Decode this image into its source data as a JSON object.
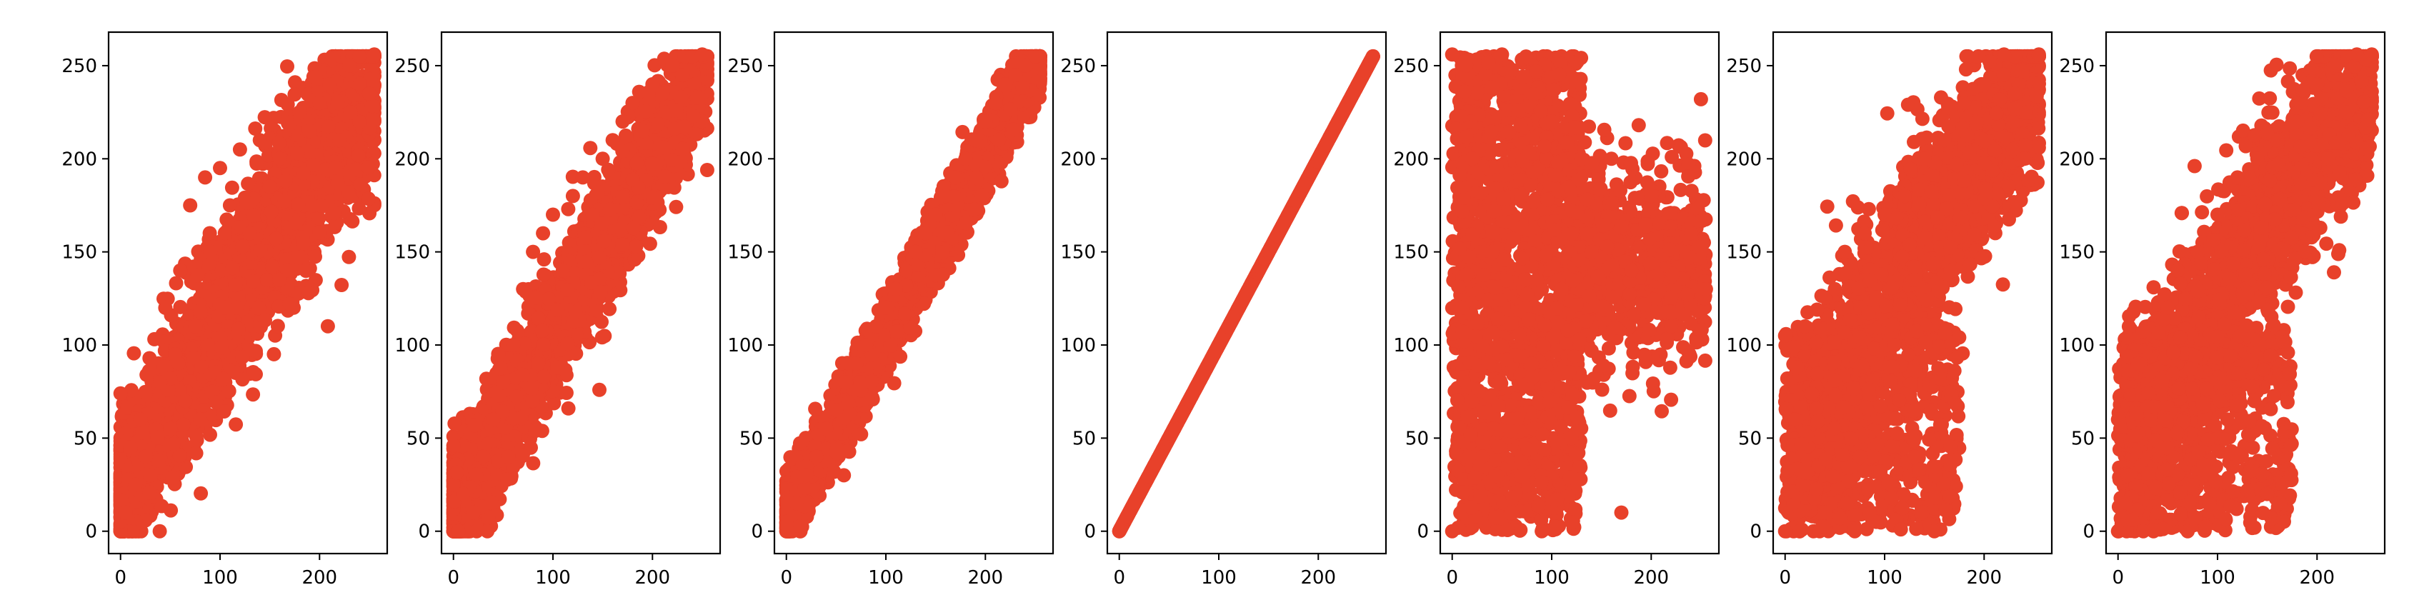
{
  "chart_data": [
    {
      "type": "scatter",
      "xlim": [
        -12,
        268
      ],
      "ylim": [
        -12,
        268
      ],
      "xticks": [
        0,
        100,
        200
      ],
      "yticks": [
        0,
        50,
        100,
        150,
        200,
        250
      ],
      "xtick_labels": [
        "0",
        "100",
        "200"
      ],
      "ytick_labels": [
        "0",
        "50",
        "100",
        "150",
        "200",
        "250"
      ],
      "pattern": "broad-positive-correlation",
      "series": [
        {
          "color": "#e8412a",
          "points": [
            [
              0,
              74
            ],
            [
              5,
              10
            ],
            [
              10,
              45
            ],
            [
              15,
              25
            ],
            [
              20,
              60
            ],
            [
              25,
              40
            ],
            [
              30,
              30
            ],
            [
              40,
              80
            ],
            [
              45,
              120
            ],
            [
              50,
              55
            ],
            [
              55,
              95
            ],
            [
              60,
              140
            ],
            [
              65,
              70
            ],
            [
              70,
              175
            ],
            [
              75,
              110
            ],
            [
              80,
              60
            ],
            [
              85,
              190
            ],
            [
              90,
              150
            ],
            [
              100,
              195
            ],
            [
              105,
              120
            ],
            [
              110,
              175
            ],
            [
              120,
              205
            ],
            [
              130,
              160
            ],
            [
              140,
              210
            ],
            [
              150,
              185
            ],
            [
              160,
              200
            ],
            [
              170,
              122
            ],
            [
              180,
              225
            ],
            [
              190,
              215
            ],
            [
              200,
              230
            ],
            [
              210,
              240
            ],
            [
              220,
              210
            ],
            [
              230,
              250
            ],
            [
              240,
              255
            ],
            [
              250,
              235
            ],
            [
              255,
              256
            ]
          ]
        }
      ]
    },
    {
      "type": "scatter",
      "xlim": [
        -12,
        268
      ],
      "ylim": [
        -12,
        268
      ],
      "xticks": [
        0,
        100,
        200
      ],
      "yticks": [
        0,
        50,
        100,
        150,
        200,
        250
      ],
      "xtick_labels": [
        "0",
        "100",
        "200"
      ],
      "ytick_labels": [
        "0",
        "50",
        "100",
        "150",
        "200",
        "250"
      ],
      "pattern": "moderate-positive-correlation",
      "series": [
        {
          "color": "#e8412a",
          "points": [
            [
              0,
              46
            ],
            [
              5,
              0
            ],
            [
              10,
              20
            ],
            [
              20,
              10
            ],
            [
              30,
              40
            ],
            [
              40,
              60
            ],
            [
              50,
              80
            ],
            [
              55,
              40
            ],
            [
              60,
              100
            ],
            [
              70,
              130
            ],
            [
              80,
              150
            ],
            [
              85,
              90
            ],
            [
              90,
              160
            ],
            [
              100,
              170
            ],
            [
              110,
              140
            ],
            [
              120,
              180
            ],
            [
              130,
              190
            ],
            [
              140,
              170
            ],
            [
              150,
              200
            ],
            [
              160,
              210
            ],
            [
              170,
              220
            ],
            [
              180,
              230
            ],
            [
              190,
              215
            ],
            [
              200,
              240
            ],
            [
              210,
              235
            ],
            [
              220,
              250
            ],
            [
              230,
              245
            ],
            [
              240,
              255
            ],
            [
              250,
              256
            ]
          ]
        }
      ]
    },
    {
      "type": "scatter",
      "xlim": [
        -12,
        268
      ],
      "ylim": [
        -12,
        268
      ],
      "xticks": [
        0,
        100,
        200
      ],
      "yticks": [
        0,
        50,
        100,
        150,
        200,
        250
      ],
      "xtick_labels": [
        "0",
        "100",
        "200"
      ],
      "ytick_labels": [
        "0",
        "50",
        "100",
        "150",
        "200",
        "250"
      ],
      "pattern": "strong-positive-correlation",
      "series": [
        {
          "color": "#e8412a",
          "points": [
            [
              0,
              5
            ],
            [
              10,
              15
            ],
            [
              20,
              30
            ],
            [
              30,
              40
            ],
            [
              40,
              55
            ],
            [
              50,
              65
            ],
            [
              60,
              80
            ],
            [
              70,
              90
            ],
            [
              80,
              100
            ],
            [
              90,
              110
            ],
            [
              100,
              120
            ],
            [
              110,
              130
            ],
            [
              120,
              140
            ],
            [
              130,
              150
            ],
            [
              140,
              160
            ],
            [
              150,
              170
            ],
            [
              160,
              180
            ],
            [
              170,
              190
            ],
            [
              180,
              200
            ],
            [
              190,
              210
            ],
            [
              200,
              220
            ],
            [
              210,
              230
            ],
            [
              220,
              240
            ],
            [
              230,
              245
            ],
            [
              240,
              250
            ],
            [
              250,
              255
            ]
          ]
        }
      ]
    },
    {
      "type": "scatter",
      "xlim": [
        -12,
        268
      ],
      "ylim": [
        -12,
        268
      ],
      "xticks": [
        0,
        100,
        200
      ],
      "yticks": [
        0,
        50,
        100,
        150,
        200,
        250
      ],
      "xtick_labels": [
        "0",
        "100",
        "200"
      ],
      "ytick_labels": [
        "0",
        "50",
        "100",
        "150",
        "200",
        "250"
      ],
      "pattern": "identity-line",
      "series": [
        {
          "color": "#e8412a",
          "points": [
            [
              0,
              0
            ],
            [
              255,
              255
            ]
          ]
        }
      ]
    },
    {
      "type": "scatter",
      "xlim": [
        -12,
        268
      ],
      "ylim": [
        -12,
        268
      ],
      "xticks": [
        0,
        100,
        200
      ],
      "yticks": [
        0,
        50,
        100,
        150,
        200,
        250
      ],
      "xtick_labels": [
        "0",
        "100",
        "200"
      ],
      "ytick_labels": [
        "0",
        "50",
        "100",
        "150",
        "200",
        "250"
      ],
      "pattern": "weak-correlation",
      "series": [
        {
          "color": "#e8412a",
          "points": [
            [
              0,
              0
            ],
            [
              0,
              256
            ],
            [
              10,
              120
            ],
            [
              20,
              200
            ],
            [
              30,
              40
            ],
            [
              40,
              150
            ],
            [
              50,
              256
            ],
            [
              60,
              10
            ],
            [
              70,
              180
            ],
            [
              80,
              90
            ],
            [
              90,
              0
            ],
            [
              100,
              220
            ],
            [
              110,
              130
            ],
            [
              120,
              50
            ],
            [
              130,
              200
            ],
            [
              140,
              150
            ],
            [
              160,
              200
            ],
            [
              170,
              10
            ],
            [
              180,
              140
            ],
            [
              200,
              180
            ],
            [
              220,
              110
            ],
            [
              240,
              160
            ],
            [
              250,
              232
            ],
            [
              255,
              130
            ]
          ]
        }
      ]
    },
    {
      "type": "scatter",
      "xlim": [
        -12,
        268
      ],
      "ylim": [
        -12,
        268
      ],
      "xticks": [
        0,
        100,
        200
      ],
      "yticks": [
        0,
        50,
        100,
        150,
        200,
        250
      ],
      "xtick_labels": [
        "0",
        "100",
        "200"
      ],
      "ytick_labels": [
        "0",
        "50",
        "100",
        "150",
        "200",
        "250"
      ],
      "pattern": "positive-correlation-with-low-outliers",
      "series": [
        {
          "color": "#e8412a",
          "points": [
            [
              0,
              0
            ],
            [
              0,
              105
            ],
            [
              10,
              60
            ],
            [
              20,
              110
            ],
            [
              40,
              10
            ],
            [
              50,
              130
            ],
            [
              60,
              150
            ],
            [
              70,
              0
            ],
            [
              80,
              160
            ],
            [
              100,
              170
            ],
            [
              110,
              100
            ],
            [
              120,
              180
            ],
            [
              130,
              40
            ],
            [
              140,
              200
            ],
            [
              150,
              0
            ],
            [
              160,
              210
            ],
            [
              180,
              230
            ],
            [
              200,
              240
            ],
            [
              220,
              256
            ],
            [
              240,
              200
            ],
            [
              255,
              256
            ]
          ]
        }
      ]
    },
    {
      "type": "scatter",
      "xlim": [
        -12,
        268
      ],
      "ylim": [
        -12,
        268
      ],
      "xticks": [
        0,
        100,
        200
      ],
      "yticks": [
        0,
        50,
        100,
        150,
        200,
        250
      ],
      "xtick_labels": [
        "0",
        "100",
        "200"
      ],
      "ytick_labels": [
        "0",
        "50",
        "100",
        "150",
        "200",
        "250"
      ],
      "pattern": "positive-correlation-with-low-outliers",
      "series": [
        {
          "color": "#e8412a",
          "points": [
            [
              0,
              0
            ],
            [
              0,
              60
            ],
            [
              10,
              30
            ],
            [
              20,
              90
            ],
            [
              40,
              10
            ],
            [
              50,
              120
            ],
            [
              60,
              140
            ],
            [
              70,
              0
            ],
            [
              80,
              150
            ],
            [
              100,
              170
            ],
            [
              110,
              60
            ],
            [
              120,
              190
            ],
            [
              140,
              200
            ],
            [
              150,
              20
            ],
            [
              160,
              210
            ],
            [
              180,
              220
            ],
            [
              200,
              240
            ],
            [
              220,
              250
            ],
            [
              240,
              256
            ],
            [
              255,
              256
            ]
          ]
        }
      ]
    }
  ]
}
